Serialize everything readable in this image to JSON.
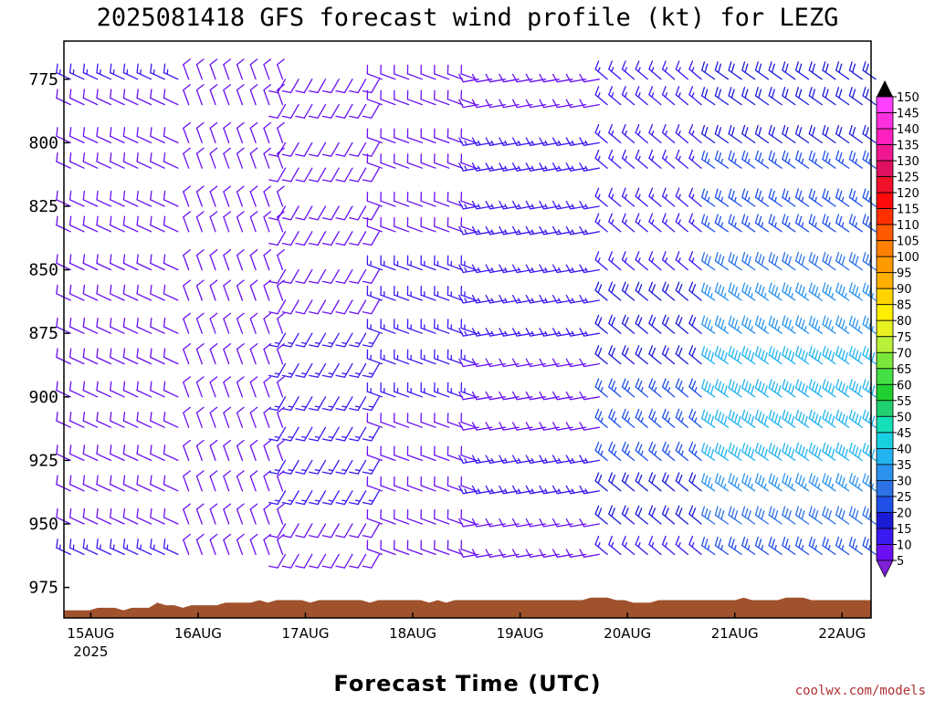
{
  "chart_data": {
    "type": "wind_profile",
    "title": "2025081418 GFS forecast wind profile (kt) for LEZG",
    "xlabel": "Forecast Time (UTC)",
    "watermark": "coolwx.com/models",
    "y_ticks": [
      "775",
      "800",
      "825",
      "850",
      "875",
      "900",
      "925",
      "950",
      "975"
    ],
    "x_ticks": [
      {
        "label": "15AUG",
        "sub": "2025"
      },
      {
        "label": "16AUG",
        "sub": ""
      },
      {
        "label": "17AUG",
        "sub": ""
      },
      {
        "label": "18AUG",
        "sub": ""
      },
      {
        "label": "19AUG",
        "sub": ""
      },
      {
        "label": "20AUG",
        "sub": ""
      },
      {
        "label": "21AUG",
        "sub": ""
      },
      {
        "label": "22AUG",
        "sub": ""
      }
    ],
    "colorbar": {
      "values": [
        5,
        10,
        15,
        20,
        25,
        30,
        35,
        40,
        45,
        50,
        55,
        60,
        65,
        70,
        75,
        80,
        85,
        90,
        95,
        100,
        105,
        110,
        115,
        120,
        125,
        130,
        135,
        140,
        145,
        150
      ],
      "colors": [
        "#7f1fd6",
        "#6a10f2",
        "#3a1af0",
        "#1b1bd6",
        "#1f50e8",
        "#2c72e6",
        "#2b93ee",
        "#22b3f0",
        "#19d0e0",
        "#16e0b8",
        "#20d070",
        "#20d030",
        "#44e044",
        "#7ae83a",
        "#b8f03a",
        "#e8f020",
        "#ffee00",
        "#ffd400",
        "#ffb000",
        "#ff9a00",
        "#ff8000",
        "#ff5a00",
        "#ff3000",
        "#ff0a0a",
        "#f0102a",
        "#e01060",
        "#f01890",
        "#ff20c0",
        "#ff30e0",
        "#ff40ff"
      ]
    },
    "time_segments": [
      {
        "t0": 14.75,
        "t1": 15.85,
        "dir": 295,
        "spd": [
          15,
          10,
          10,
          10,
          10,
          10,
          10,
          10,
          10,
          10,
          10,
          10,
          10,
          10,
          10,
          15
        ]
      },
      {
        "t0": 15.85,
        "t1": 16.75,
        "dir": 340,
        "spd": [
          10,
          10,
          10,
          10,
          10,
          10,
          10,
          10,
          10,
          10,
          10,
          10,
          10,
          10,
          10,
          10
        ]
      },
      {
        "t0": 16.75,
        "t1": 17.65,
        "dir": 210,
        "spd": [
          10,
          10,
          10,
          10,
          10,
          10,
          10,
          10,
          15,
          15,
          15,
          15,
          15,
          15,
          10,
          10
        ]
      },
      {
        "t0": 17.65,
        "t1": 18.55,
        "dir": 290,
        "spd": [
          10,
          10,
          10,
          10,
          10,
          10,
          15,
          15,
          15,
          15,
          15,
          10,
          10,
          10,
          10,
          10
        ]
      },
      {
        "t0": 18.55,
        "t1": 19.75,
        "dir": 260,
        "spd": [
          10,
          10,
          15,
          15,
          15,
          15,
          15,
          15,
          15,
          10,
          10,
          10,
          15,
          15,
          10,
          10
        ]
      },
      {
        "t0": 19.75,
        "t1": 20.75,
        "dir": 310,
        "spd": [
          15,
          15,
          15,
          15,
          15,
          15,
          15,
          20,
          20,
          20,
          25,
          25,
          25,
          20,
          20,
          15
        ]
      },
      {
        "t0": 20.75,
        "t1": 22.27,
        "dir": 305,
        "spd": [
          20,
          20,
          20,
          25,
          25,
          25,
          30,
          35,
          35,
          40,
          40,
          40,
          40,
          35,
          30,
          25
        ]
      }
    ],
    "levels": [
      775,
      785,
      800,
      810,
      825,
      835,
      850,
      862,
      875,
      887,
      900,
      912,
      925,
      937,
      950,
      962
    ],
    "surface_hpa": [
      984,
      984,
      984,
      984,
      983,
      983,
      983,
      984,
      983,
      983,
      983,
      981,
      982,
      982,
      983,
      982,
      982,
      982,
      982,
      981,
      981,
      981,
      981,
      980,
      981,
      980,
      980,
      980,
      980,
      981,
      980,
      980,
      980,
      980,
      980,
      980,
      981,
      980,
      980,
      980,
      980,
      980,
      980,
      981,
      980,
      981,
      980,
      980,
      980,
      980,
      980,
      980,
      980,
      980,
      980,
      980,
      980,
      980,
      980,
      980,
      980,
      980,
      979,
      979,
      979,
      980,
      980,
      981,
      981,
      981,
      980,
      980,
      980,
      980,
      980,
      980,
      980,
      980,
      980,
      980,
      979,
      980,
      980,
      980,
      980,
      979,
      979,
      979,
      980,
      980,
      980,
      980,
      980,
      980,
      980,
      980
    ],
    "ylim": [
      760,
      987
    ],
    "xlim": [
      14.75,
      22.27
    ]
  }
}
